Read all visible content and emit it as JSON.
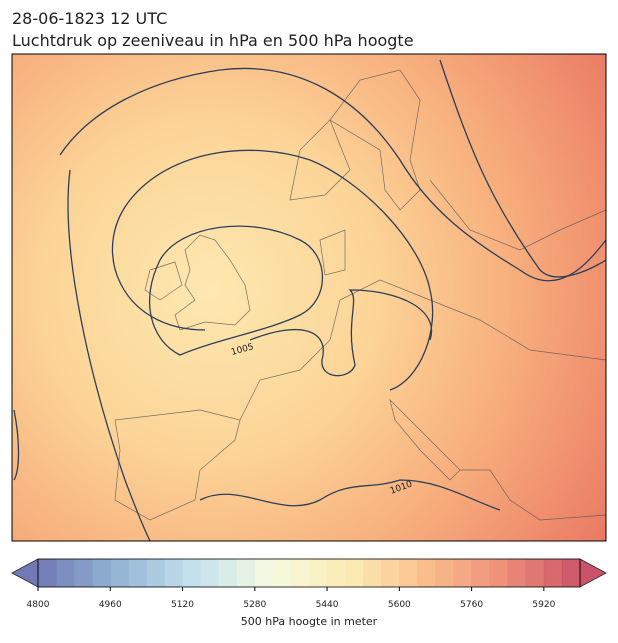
{
  "title": "28-06-1823 12 UTC",
  "subtitle": "Luchtdruk op zeeniveau in hPa en 500 hPa hoogte",
  "contour_labels": [
    "1005",
    "1010"
  ],
  "colorbar": {
    "label": "500 hPa hoogte in meter",
    "lim": [
      4800,
      6000
    ],
    "step": 40,
    "ticks": [
      4800,
      4960,
      5120,
      5280,
      5440,
      5600,
      5760,
      5920
    ],
    "colors": [
      "#5a62a8",
      "#7fa6cc",
      "#b9dcea",
      "#f3f9dc",
      "#fde9a8",
      "#f9b479",
      "#ec7c62",
      "#c3364f"
    ]
  }
}
